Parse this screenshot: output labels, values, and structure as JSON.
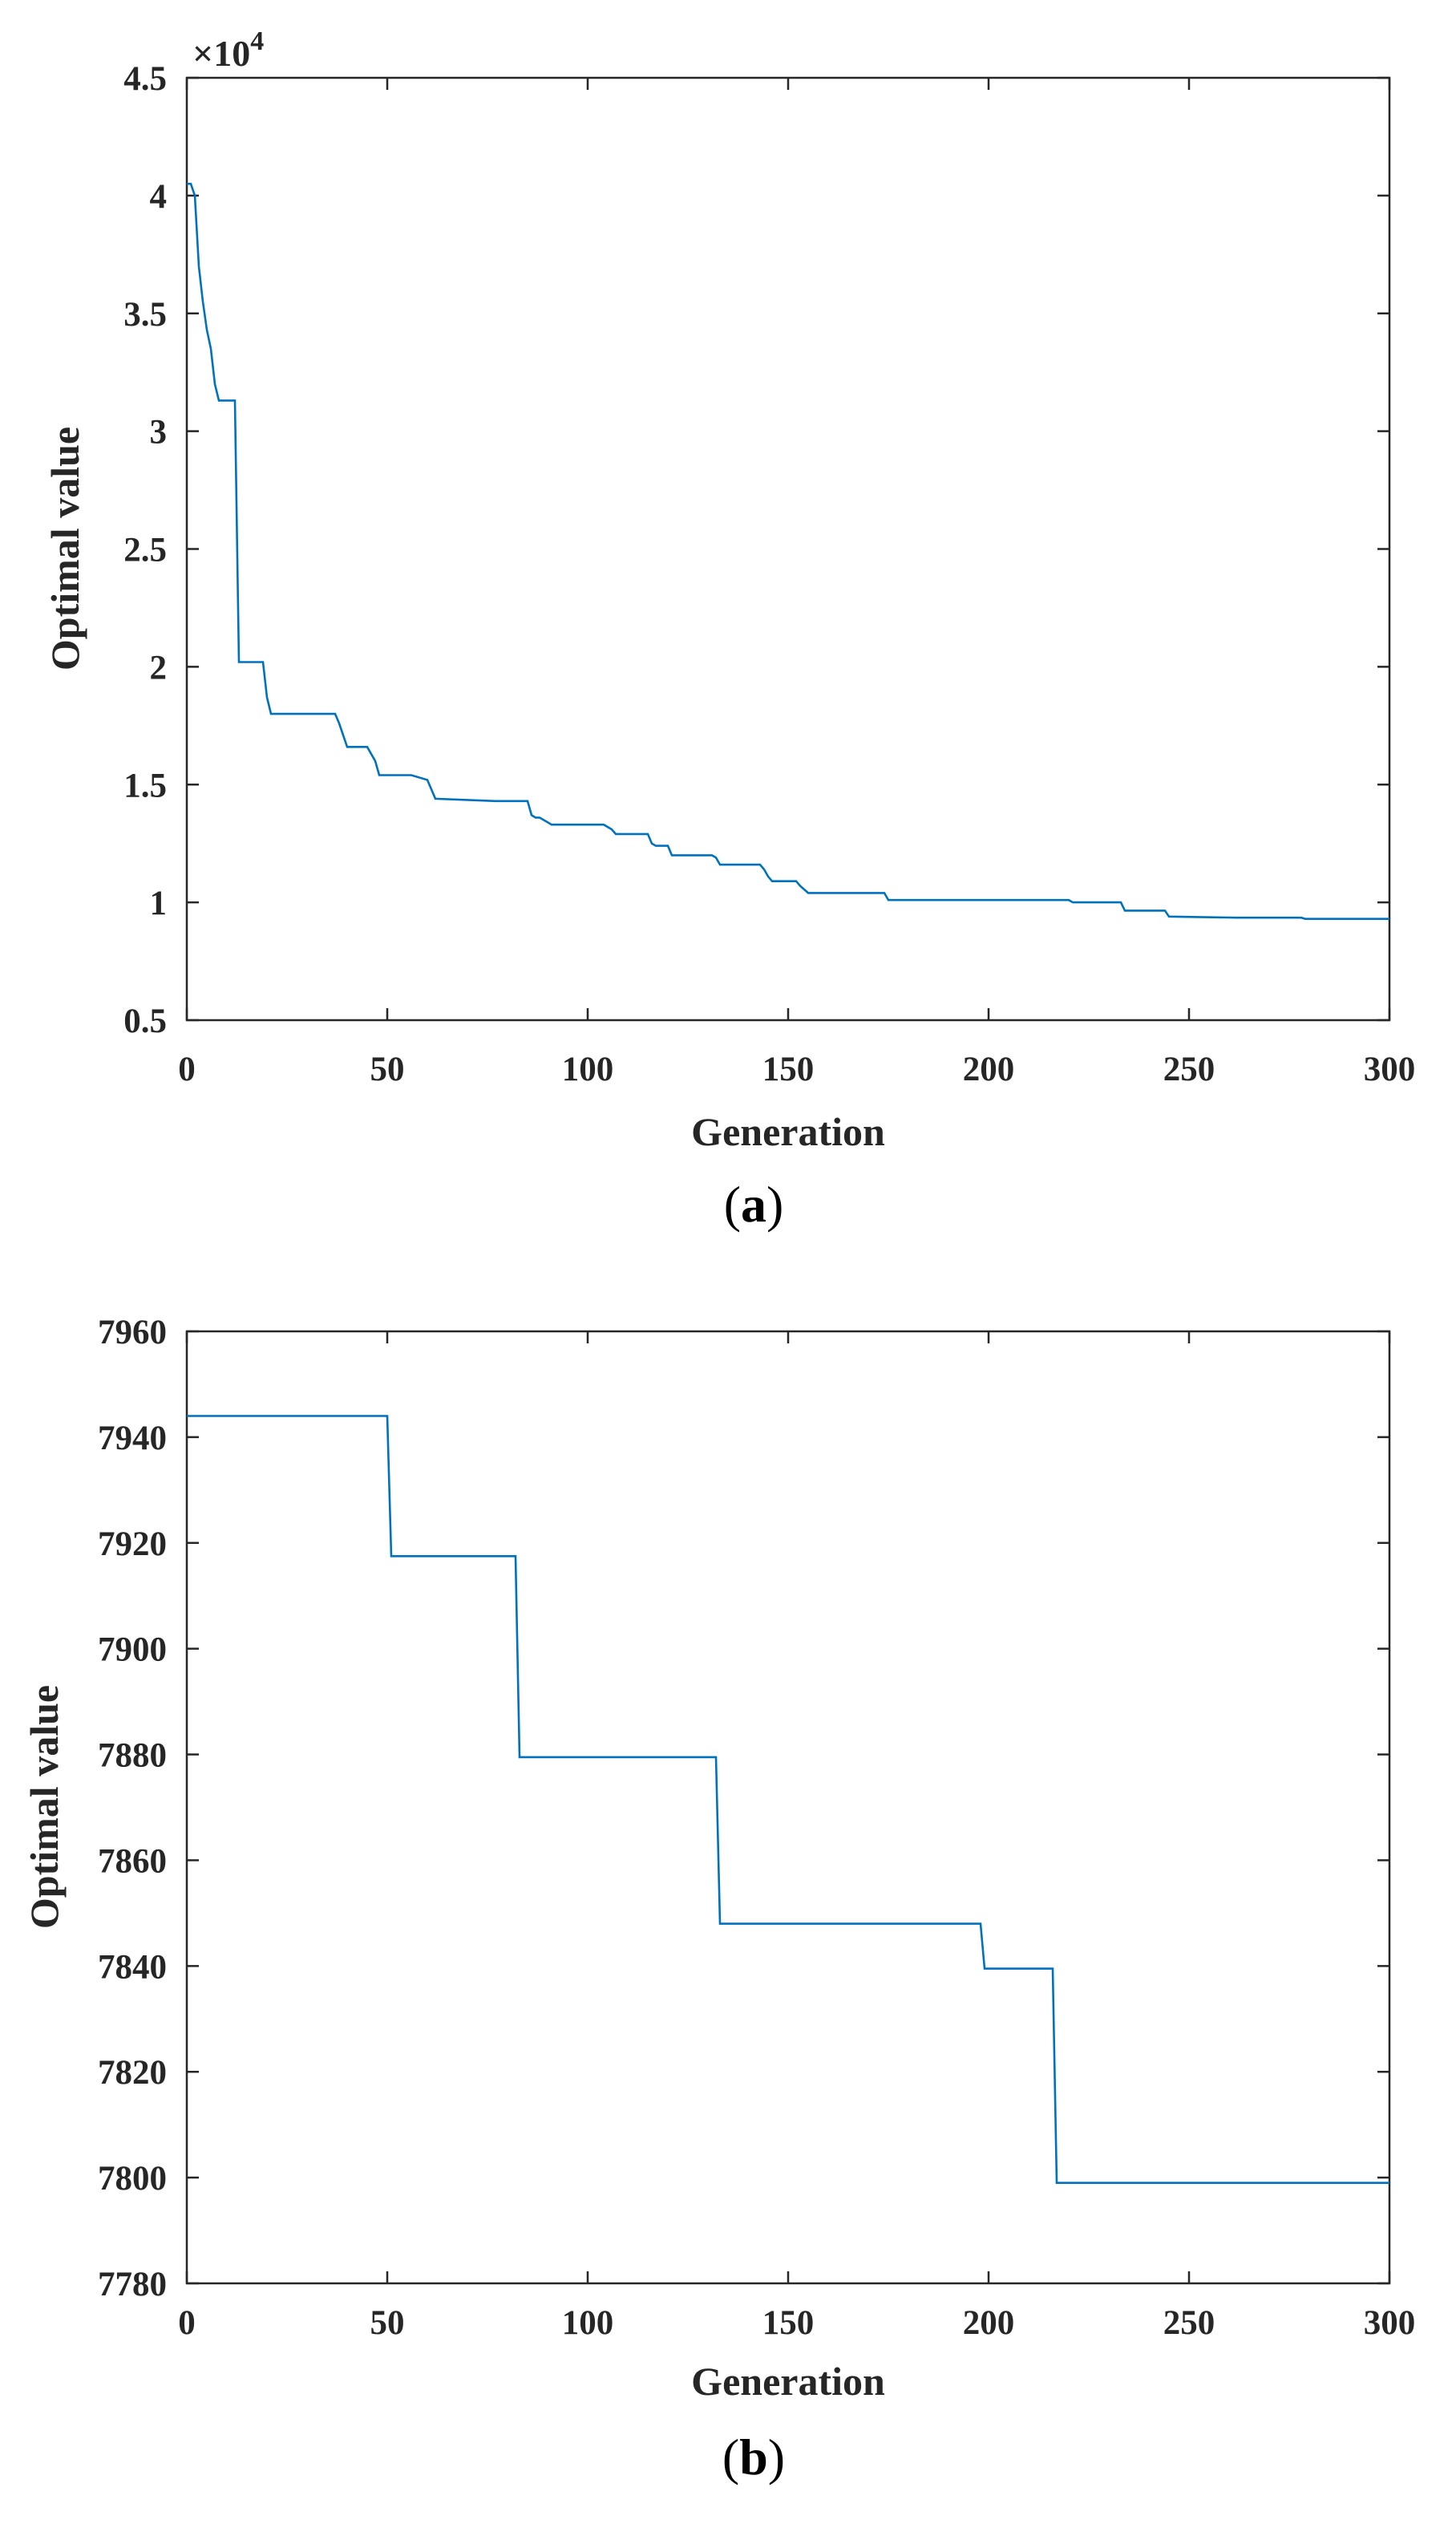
{
  "colors": {
    "series": "#0072bd",
    "axes": "#262626"
  },
  "chart_data": [
    {
      "type": "line",
      "panel_caption": {
        "open": "(",
        "letter": "a",
        "close": ")"
      },
      "xlabel": "Generation",
      "ylabel": "Optimal value",
      "xlim": [
        0,
        300
      ],
      "ylim": [
        5000,
        45000
      ],
      "x_ticks": [
        0,
        50,
        100,
        150,
        200,
        250,
        300
      ],
      "x_tick_labels": [
        "0",
        "50",
        "100",
        "150",
        "200",
        "250",
        "300"
      ],
      "y_ticks": [
        5000,
        10000,
        15000,
        20000,
        25000,
        30000,
        35000,
        40000,
        45000
      ],
      "y_tick_labels": [
        "0.5",
        "1",
        "1.5",
        "2",
        "2.5",
        "3",
        "3.5",
        "4",
        "4.5"
      ],
      "exponent_label": {
        "base": "×10",
        "power": "4"
      },
      "series": [
        {
          "name": "Optimal value",
          "x": [
            0,
            1,
            2,
            3,
            4,
            5,
            6,
            7,
            8,
            12,
            13,
            14,
            19,
            20,
            21,
            37,
            38,
            40,
            45,
            47,
            48,
            56,
            60,
            61,
            62,
            77,
            85,
            86,
            87,
            88,
            90,
            91,
            104,
            106,
            107,
            115,
            116,
            117,
            120,
            121,
            131,
            132,
            133,
            143,
            144,
            145,
            146,
            152,
            153,
            155,
            174,
            175,
            220,
            221,
            233,
            234,
            244,
            245,
            262,
            278,
            279,
            300
          ],
          "y": [
            40500,
            40500,
            40000,
            37000,
            35500,
            34300,
            33500,
            32000,
            31300,
            31300,
            20200,
            20200,
            20200,
            18700,
            18000,
            18000,
            17600,
            16600,
            16600,
            16000,
            15400,
            15400,
            15200,
            14800,
            14400,
            14300,
            14300,
            13700,
            13600,
            13600,
            13400,
            13300,
            13300,
            13100,
            12900,
            12900,
            12500,
            12400,
            12400,
            12000,
            12000,
            11900,
            11600,
            11600,
            11400,
            11100,
            10900,
            10900,
            10700,
            10400,
            10400,
            10100,
            10100,
            10000,
            10000,
            9650,
            9650,
            9400,
            9350,
            9350,
            9300,
            9300
          ]
        }
      ]
    },
    {
      "type": "line",
      "panel_caption": {
        "open": "(",
        "letter": "b",
        "close": ")"
      },
      "xlabel": "Generation",
      "ylabel": "Optimal value",
      "xlim": [
        0,
        300
      ],
      "ylim": [
        7780,
        7960
      ],
      "x_ticks": [
        0,
        50,
        100,
        150,
        200,
        250,
        300
      ],
      "x_tick_labels": [
        "0",
        "50",
        "100",
        "150",
        "200",
        "250",
        "300"
      ],
      "y_ticks": [
        7780,
        7800,
        7820,
        7840,
        7860,
        7880,
        7900,
        7920,
        7940,
        7960
      ],
      "y_tick_labels": [
        "7780",
        "7800",
        "7820",
        "7840",
        "7860",
        "7880",
        "7900",
        "7920",
        "7940",
        "7960"
      ],
      "series": [
        {
          "name": "Optimal value",
          "x": [
            0,
            50,
            51,
            82,
            83,
            132,
            133,
            198,
            199,
            216,
            217,
            300
          ],
          "y": [
            7944,
            7944,
            7917.5,
            7917.5,
            7879.5,
            7879.5,
            7848,
            7848,
            7839.5,
            7839.5,
            7799,
            7799
          ]
        }
      ]
    }
  ]
}
